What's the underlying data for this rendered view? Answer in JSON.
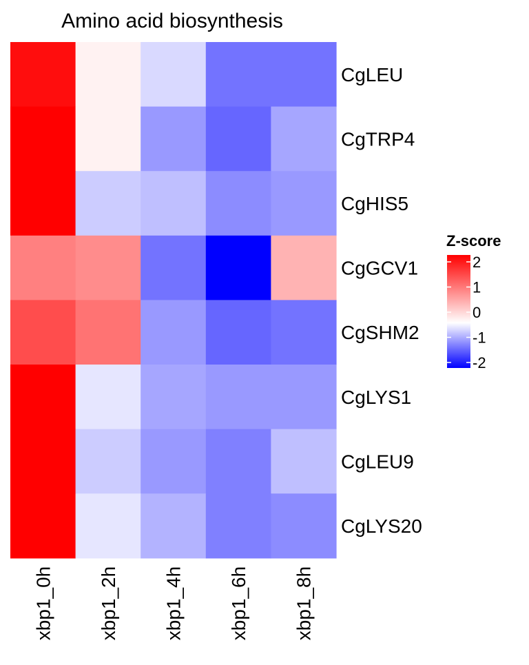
{
  "chart_data": {
    "type": "heatmap",
    "title": "Amino acid biosynthesis",
    "rows": [
      "CgLEU",
      "CgTRP4",
      "CgHIS5",
      "CgGCV1",
      "CgSHM2",
      "CgLYS1",
      "CgLEU9",
      "CgLYS20"
    ],
    "columns": [
      "xbp1_0h",
      "xbp1_2h",
      "xbp1_4h",
      "xbp1_6h",
      "xbp1_8h"
    ],
    "values": [
      [
        1.9,
        0.1,
        -0.3,
        -1.1,
        -1.1
      ],
      [
        2.0,
        0.1,
        -0.8,
        -1.2,
        -0.7
      ],
      [
        2.0,
        -0.4,
        -0.5,
        -0.9,
        -0.8
      ],
      [
        1.0,
        0.9,
        -1.1,
        -2.0,
        0.6
      ],
      [
        1.4,
        1.1,
        -0.8,
        -1.2,
        -1.1
      ],
      [
        2.0,
        -0.2,
        -0.7,
        -0.8,
        -0.8
      ],
      [
        2.0,
        -0.4,
        -0.8,
        -1.0,
        -0.5
      ],
      [
        2.0,
        -0.2,
        -0.6,
        -1.0,
        -0.9
      ]
    ],
    "legend": {
      "title": "Z-score",
      "ticks": [
        2,
        1,
        0,
        -1,
        -2
      ],
      "range": [
        -2,
        2
      ],
      "colors": {
        "low": "#0000ff",
        "mid": "#ffffff",
        "high": "#ff0000"
      },
      "mid_offset": 0.6,
      "placement": "right"
    }
  }
}
